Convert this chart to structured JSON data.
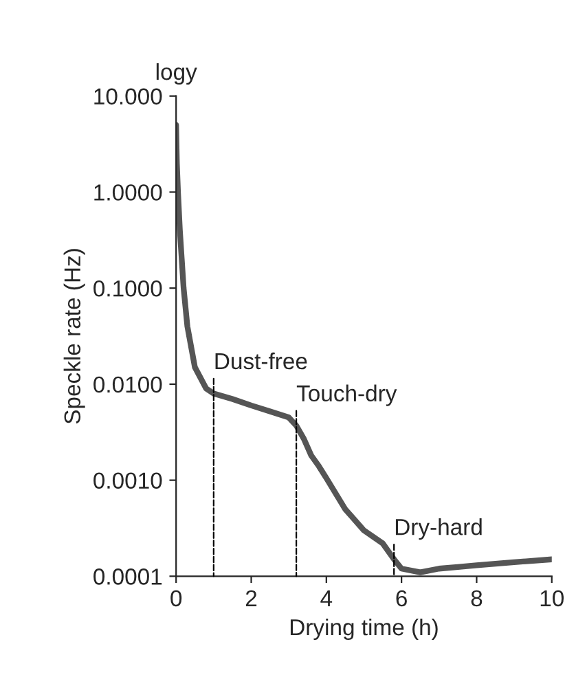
{
  "chart_data": {
    "type": "line",
    "xlabel": "Drying time (h)",
    "ylabel": "Speckle rate (Hz)",
    "log": "y",
    "x": [
      0,
      0.02,
      0.05,
      0.1,
      0.15,
      0.2,
      0.3,
      0.5,
      0.8,
      1,
      1.5,
      2,
      2.5,
      3,
      3.2,
      3.4,
      3.6,
      3.8,
      4,
      4.5,
      5,
      5.5,
      5.8,
      6,
      6.5,
      7,
      7.5,
      8,
      9,
      10
    ],
    "series": [
      {
        "color": "#555555",
        "values": [
          5,
          2,
          1.0,
          0.4,
          0.2,
          0.1,
          0.04,
          0.015,
          0.009,
          0.008,
          0.007,
          0.006,
          0.0052,
          0.0045,
          0.0037,
          0.0027,
          0.0018,
          0.0014,
          0.00105,
          0.0005,
          0.0003,
          0.00022,
          0.00015,
          0.00012,
          0.00011,
          0.00012,
          0.000125,
          0.00013,
          0.00014,
          0.00015
        ]
      }
    ],
    "xlim": [
      0,
      10
    ],
    "xticks": [
      0,
      2,
      4,
      6,
      8,
      10
    ],
    "ylim": [
      0.0001,
      10
    ],
    "yticks": [
      {
        "value": 10,
        "label": "10.000"
      },
      {
        "value": 1,
        "label": "1.0000"
      },
      {
        "value": 0.1,
        "label": "0.1000"
      },
      {
        "value": 0.01,
        "label": "0.0100"
      },
      {
        "value": 0.001,
        "label": "0.0010"
      },
      {
        "value": 0.0001,
        "label": "0.0001"
      }
    ],
    "annotations": [
      "logy",
      {
        "text": "Dust-free",
        "x": 1,
        "y": 0.008
      },
      {
        "text": "Touch-dry",
        "x": 3.2,
        "y": 0.0037
      },
      {
        "text": "Dry-hard",
        "x": 5.8,
        "y": 0.00015
      }
    ],
    "grid": false,
    "legend": false,
    "line_style": "solid",
    "marker": "none"
  }
}
